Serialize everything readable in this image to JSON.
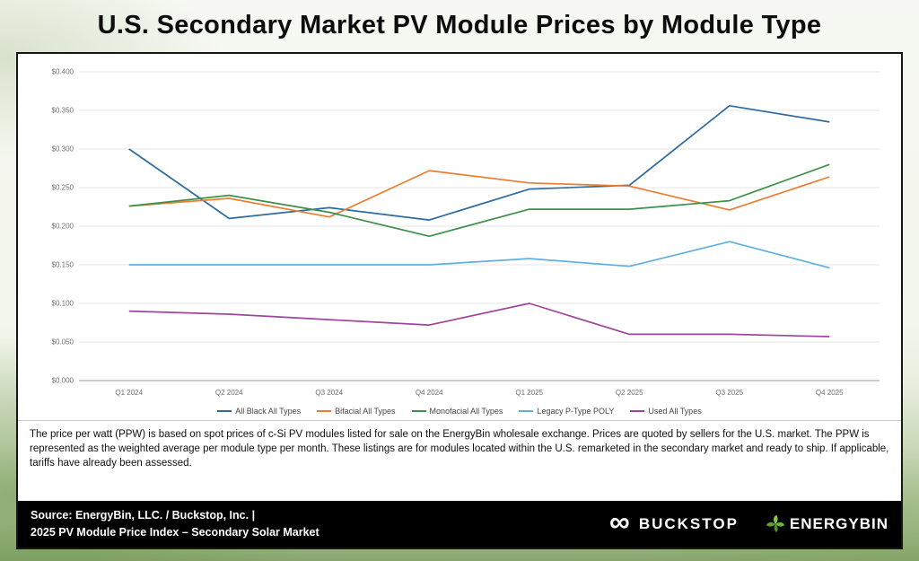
{
  "page": {
    "title": "U.S. Secondary Market PV Module Prices by Module Type"
  },
  "chart_data": {
    "type": "line",
    "title": "U.S. Secondary Market PV Module Prices by Module Type",
    "categories": [
      "Q1 2024",
      "Q2 2024",
      "Q3 2024",
      "Q4 2024",
      "Q1 2025",
      "Q2 2025",
      "Q3 2025",
      "Q4 2025"
    ],
    "y_axis": {
      "min": 0,
      "max": 0.4,
      "step": 0.05,
      "tick_format": "$0.000"
    },
    "grid": true,
    "legend_position": "bottom",
    "series": [
      {
        "name": "All Black All Types",
        "color": "#2e6b9e",
        "values": [
          0.3,
          0.21,
          0.224,
          0.208,
          0.248,
          0.253,
          0.356,
          0.335
        ]
      },
      {
        "name": "Bifacial All Types",
        "color": "#ed7d31",
        "values": [
          0.226,
          0.236,
          0.212,
          0.272,
          0.256,
          0.252,
          0.221,
          0.264
        ]
      },
      {
        "name": "Monofacial All Types",
        "color": "#3f8f4a",
        "values": [
          0.226,
          0.24,
          0.218,
          0.187,
          0.222,
          0.222,
          0.233,
          0.28
        ]
      },
      {
        "name": "Legacy P-Type POLY",
        "color": "#5fb0dd",
        "values": [
          0.15,
          0.15,
          0.15,
          0.15,
          0.158,
          0.148,
          0.18,
          0.146
        ]
      },
      {
        "name": "Used All Types",
        "color": "#a0459b",
        "values": [
          0.09,
          0.086,
          0.079,
          0.072,
          0.1,
          0.06,
          0.06,
          0.057
        ]
      }
    ]
  },
  "description": "The price per watt (PPW) is based on spot prices of c-Si PV modules listed for sale on the EnergyBin wholesale exchange.  Prices are quoted by sellers for the U.S. market.  The PPW is represented as the weighted average per module type per month.  These listings are for modules located within the U.S. remarketed in the secondary market and ready to ship.  If applicable, tariffs have already been assessed.",
  "footer": {
    "source_line1": "Source: EnergyBin, LLC. / Buckstop, Inc.  |",
    "source_line2": "2025 PV Module Price Index – Secondary Solar Market",
    "buckstop_logo_text": "BUCKSTOP",
    "energybin_logo_text": "ENERGYBIN",
    "infinity_glyph": "∞"
  }
}
